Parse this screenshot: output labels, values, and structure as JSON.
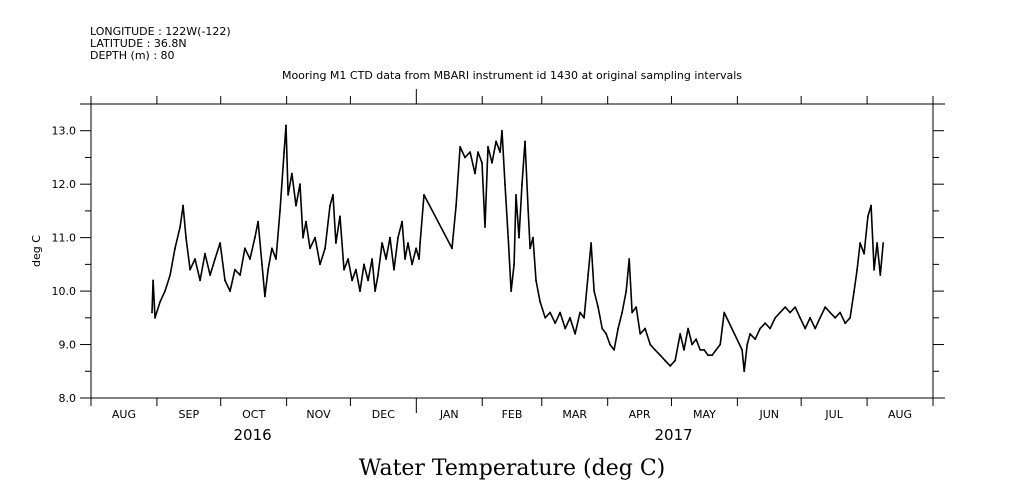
{
  "header": {
    "longitude": "LONGITUDE : 122W(-122)",
    "latitude": "LATITUDE : 36.8N",
    "depth": "DEPTH (m) : 80"
  },
  "chart_data": {
    "type": "line",
    "title": "Mooring M1 CTD data from MBARI instrument id 1430 at original sampling intervals",
    "xlabel": "Water Temperature (deg C)",
    "ylabel": "deg C",
    "x_units": "days since 2016-08-01",
    "xlim": [
      0,
      396
    ],
    "ylim": [
      8.0,
      13.5
    ],
    "y_ticks": [
      "8.0",
      "9.0",
      "10.0",
      "11.0",
      "12.0",
      "13.0"
    ],
    "y_tick_values": [
      8,
      9,
      10,
      11,
      12,
      13
    ],
    "month_starts": [
      0,
      31,
      61,
      92,
      122,
      153,
      184,
      212,
      243,
      273,
      304,
      334,
      365,
      396
    ],
    "month_labels": [
      "AUG",
      "SEP",
      "OCT",
      "NOV",
      "DEC",
      "JAN",
      "FEB",
      "MAR",
      "APR",
      "MAY",
      "JUN",
      "JUL",
      "AUG"
    ],
    "years": [
      {
        "label": "2016",
        "at_day": 76
      },
      {
        "label": "2017",
        "at_day": 274
      }
    ],
    "grid": false,
    "series": [
      {
        "name": "Water Temperature",
        "points": [
          [
            28.7,
            9.6
          ],
          [
            29.2,
            10.2
          ],
          [
            30.1,
            9.5
          ],
          [
            32.5,
            9.8
          ],
          [
            34.8,
            10.0
          ],
          [
            37.2,
            10.3
          ],
          [
            39.5,
            10.8
          ],
          [
            41.9,
            11.2
          ],
          [
            43.3,
            11.6
          ],
          [
            44.7,
            11.0
          ],
          [
            46.6,
            10.4
          ],
          [
            48.9,
            10.6
          ],
          [
            51.3,
            10.2
          ],
          [
            53.6,
            10.7
          ],
          [
            56.0,
            10.3
          ],
          [
            58.3,
            10.6
          ],
          [
            60.7,
            10.9
          ],
          [
            63.0,
            10.2
          ],
          [
            65.4,
            10.0
          ],
          [
            67.7,
            10.4
          ],
          [
            70.1,
            10.3
          ],
          [
            72.4,
            10.8
          ],
          [
            74.8,
            10.6
          ],
          [
            77.1,
            11.0
          ],
          [
            78.6,
            11.3
          ],
          [
            80.4,
            10.5
          ],
          [
            81.8,
            9.9
          ],
          [
            83.3,
            10.4
          ],
          [
            85.1,
            10.8
          ],
          [
            87.0,
            10.6
          ],
          [
            88.9,
            11.5
          ],
          [
            90.8,
            12.6
          ],
          [
            91.7,
            13.1
          ],
          [
            92.7,
            11.8
          ],
          [
            94.5,
            12.2
          ],
          [
            96.4,
            11.6
          ],
          [
            98.3,
            12.0
          ],
          [
            99.7,
            11.0
          ],
          [
            101.1,
            11.3
          ],
          [
            103.0,
            10.8
          ],
          [
            105.4,
            11.0
          ],
          [
            107.7,
            10.5
          ],
          [
            110.1,
            10.8
          ],
          [
            112.4,
            11.6
          ],
          [
            113.8,
            11.8
          ],
          [
            115.2,
            10.9
          ],
          [
            117.1,
            11.4
          ],
          [
            119.0,
            10.4
          ],
          [
            120.9,
            10.6
          ],
          [
            122.8,
            10.2
          ],
          [
            124.6,
            10.4
          ],
          [
            126.5,
            10.0
          ],
          [
            128.4,
            10.5
          ],
          [
            130.3,
            10.2
          ],
          [
            132.2,
            10.6
          ],
          [
            133.6,
            10.0
          ],
          [
            135.0,
            10.3
          ],
          [
            136.9,
            10.9
          ],
          [
            138.8,
            10.6
          ],
          [
            140.6,
            11.0
          ],
          [
            142.5,
            10.4
          ],
          [
            144.4,
            11.0
          ],
          [
            146.3,
            11.3
          ],
          [
            147.7,
            10.6
          ],
          [
            149.1,
            10.9
          ],
          [
            151.0,
            10.5
          ],
          [
            152.9,
            10.8
          ],
          [
            154.3,
            10.6
          ],
          [
            154.8,
            10.9
          ],
          [
            156.6,
            11.8
          ],
          [
            169.8,
            10.8
          ],
          [
            171.7,
            11.6
          ],
          [
            173.6,
            12.7
          ],
          [
            175.9,
            12.5
          ],
          [
            178.3,
            12.6
          ],
          [
            180.6,
            12.2
          ],
          [
            182.0,
            12.6
          ],
          [
            183.9,
            12.4
          ],
          [
            185.3,
            11.2
          ],
          [
            186.7,
            12.7
          ],
          [
            188.6,
            12.4
          ],
          [
            190.5,
            12.8
          ],
          [
            192.4,
            12.6
          ],
          [
            193.3,
            13.0
          ],
          [
            194.7,
            12.0
          ],
          [
            196.2,
            11.0
          ],
          [
            197.6,
            10.0
          ],
          [
            199.0,
            10.5
          ],
          [
            199.9,
            11.8
          ],
          [
            201.3,
            11.0
          ],
          [
            202.7,
            12.0
          ],
          [
            204.1,
            12.8
          ],
          [
            205.6,
            11.5
          ],
          [
            206.5,
            10.8
          ],
          [
            207.9,
            11.0
          ],
          [
            209.3,
            10.2
          ],
          [
            211.2,
            9.8
          ],
          [
            213.6,
            9.5
          ],
          [
            215.9,
            9.6
          ],
          [
            218.3,
            9.4
          ],
          [
            220.6,
            9.6
          ],
          [
            223.0,
            9.3
          ],
          [
            225.3,
            9.5
          ],
          [
            227.7,
            9.2
          ],
          [
            230.0,
            9.6
          ],
          [
            231.9,
            9.5
          ],
          [
            233.8,
            10.3
          ],
          [
            235.2,
            10.9
          ],
          [
            236.6,
            10.0
          ],
          [
            238.5,
            9.7
          ],
          [
            240.4,
            9.3
          ],
          [
            242.3,
            9.2
          ],
          [
            244.1,
            9.0
          ],
          [
            246.0,
            8.9
          ],
          [
            247.9,
            9.3
          ],
          [
            249.8,
            9.6
          ],
          [
            251.7,
            10.0
          ],
          [
            253.1,
            10.6
          ],
          [
            254.5,
            9.6
          ],
          [
            256.4,
            9.7
          ],
          [
            258.3,
            9.2
          ],
          [
            260.6,
            9.3
          ],
          [
            263.0,
            9.0
          ],
          [
            265.3,
            8.9
          ],
          [
            267.7,
            8.8
          ],
          [
            270.0,
            8.7
          ],
          [
            272.4,
            8.6
          ],
          [
            274.7,
            8.7
          ],
          [
            277.1,
            9.2
          ],
          [
            278.9,
            8.9
          ],
          [
            280.8,
            9.3
          ],
          [
            282.7,
            9.0
          ],
          [
            284.6,
            9.1
          ],
          [
            286.5,
            8.9
          ],
          [
            288.4,
            8.9
          ],
          [
            290.2,
            8.8
          ],
          [
            292.1,
            8.8
          ],
          [
            294.0,
            8.9
          ],
          [
            295.9,
            9.0
          ],
          [
            297.8,
            9.6
          ],
          [
            306.2,
            8.9
          ],
          [
            307.2,
            8.5
          ],
          [
            308.6,
            9.0
          ],
          [
            310.0,
            9.2
          ],
          [
            312.4,
            9.1
          ],
          [
            314.7,
            9.3
          ],
          [
            317.1,
            9.4
          ],
          [
            319.4,
            9.3
          ],
          [
            321.8,
            9.5
          ],
          [
            324.1,
            9.6
          ],
          [
            326.5,
            9.7
          ],
          [
            328.8,
            9.6
          ],
          [
            331.2,
            9.7
          ],
          [
            333.5,
            9.5
          ],
          [
            335.9,
            9.3
          ],
          [
            338.2,
            9.5
          ],
          [
            340.6,
            9.3
          ],
          [
            342.9,
            9.5
          ],
          [
            345.3,
            9.7
          ],
          [
            347.6,
            9.6
          ],
          [
            350.0,
            9.5
          ],
          [
            352.3,
            9.6
          ],
          [
            354.7,
            9.4
          ],
          [
            357.0,
            9.5
          ],
          [
            358.9,
            10.0
          ],
          [
            360.3,
            10.4
          ],
          [
            361.7,
            10.9
          ],
          [
            363.6,
            10.7
          ],
          [
            365.4,
            11.4
          ],
          [
            366.9,
            11.6
          ],
          [
            368.3,
            10.4
          ],
          [
            369.7,
            10.9
          ],
          [
            371.2,
            10.3
          ],
          [
            372.6,
            10.9
          ]
        ]
      }
    ]
  }
}
